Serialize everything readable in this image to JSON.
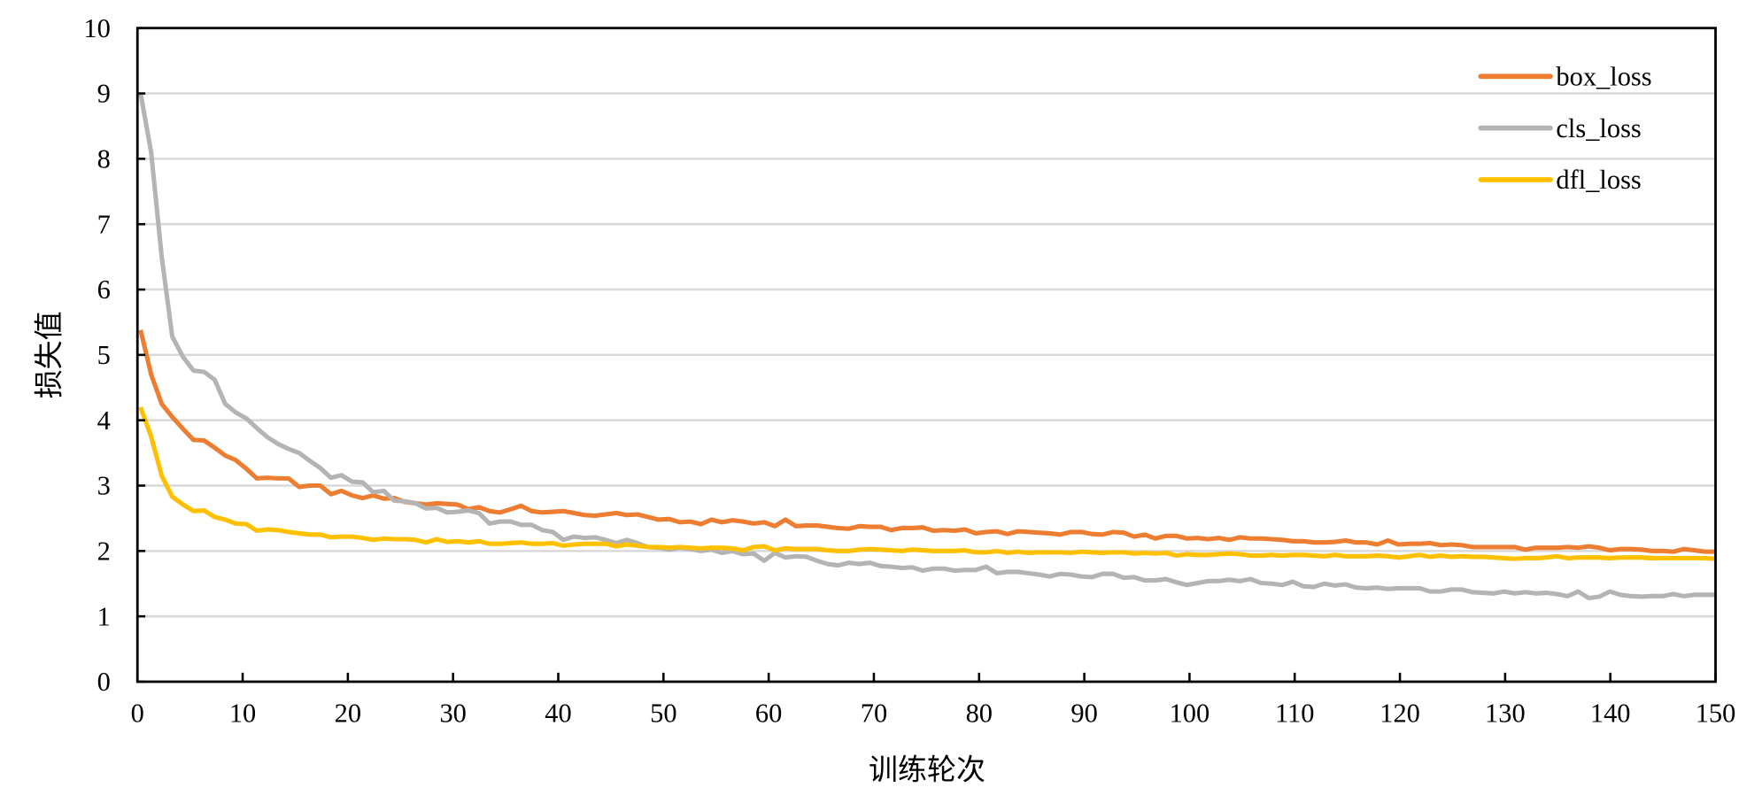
{
  "chart_data": {
    "type": "line",
    "title": "",
    "xlabel": "训练轮次",
    "ylabel": "损失值",
    "xlim": [
      0,
      150
    ],
    "ylim": [
      0,
      10
    ],
    "x_ticks": [
      "0",
      "10",
      "20",
      "30",
      "40",
      "50",
      "60",
      "70",
      "80",
      "90",
      "100",
      "110",
      "120",
      "130",
      "140",
      "150"
    ],
    "y_ticks": [
      "0",
      "1",
      "2",
      "3",
      "4",
      "5",
      "6",
      "7",
      "8",
      "9",
      "10"
    ],
    "grid": "horizontal",
    "legend_position": "top-right",
    "x_note": "epochs 1..150",
    "series": [
      {
        "name": "box_loss",
        "color": "#ED7D31",
        "values": [
          5.38,
          4.7,
          4.25,
          4.05,
          3.87,
          3.7,
          3.69,
          3.58,
          3.46,
          3.39,
          3.26,
          3.11,
          3.12,
          3.11,
          3.11,
          2.98,
          3.0,
          3.0,
          2.87,
          2.92,
          2.85,
          2.81,
          2.85,
          2.8,
          2.81,
          2.75,
          2.73,
          2.71,
          2.73,
          2.72,
          2.71,
          2.64,
          2.67,
          2.61,
          2.59,
          2.64,
          2.69,
          2.61,
          2.59,
          2.6,
          2.61,
          2.58,
          2.55,
          2.54,
          2.56,
          2.58,
          2.55,
          2.56,
          2.52,
          2.48,
          2.49,
          2.44,
          2.45,
          2.41,
          2.48,
          2.44,
          2.47,
          2.45,
          2.42,
          2.44,
          2.38,
          2.48,
          2.38,
          2.39,
          2.39,
          2.37,
          2.35,
          2.34,
          2.38,
          2.37,
          2.37,
          2.32,
          2.35,
          2.35,
          2.36,
          2.31,
          2.32,
          2.31,
          2.33,
          2.27,
          2.29,
          2.3,
          2.26,
          2.3,
          2.29,
          2.28,
          2.27,
          2.25,
          2.29,
          2.29,
          2.26,
          2.25,
          2.29,
          2.28,
          2.22,
          2.25,
          2.19,
          2.23,
          2.23,
          2.19,
          2.2,
          2.18,
          2.2,
          2.17,
          2.21,
          2.19,
          2.19,
          2.18,
          2.17,
          2.15,
          2.15,
          2.13,
          2.13,
          2.14,
          2.16,
          2.13,
          2.13,
          2.1,
          2.16,
          2.1,
          2.11,
          2.11,
          2.12,
          2.09,
          2.1,
          2.09,
          2.06,
          2.06,
          2.06,
          2.06,
          2.06,
          2.02,
          2.05,
          2.05,
          2.05,
          2.06,
          2.05,
          2.07,
          2.05,
          2.01,
          2.03,
          2.03,
          2.02,
          2.0,
          2.0,
          1.99,
          2.03,
          2.01,
          1.99,
          1.99
        ]
      },
      {
        "name": "cls_loss",
        "color": "#B4B4B4",
        "values": [
          9.0,
          8.1,
          6.5,
          5.28,
          4.97,
          4.76,
          4.74,
          4.62,
          4.25,
          4.12,
          4.03,
          3.88,
          3.74,
          3.64,
          3.56,
          3.5,
          3.38,
          3.27,
          3.12,
          3.16,
          3.06,
          3.05,
          2.9,
          2.92,
          2.77,
          2.76,
          2.73,
          2.65,
          2.66,
          2.59,
          2.6,
          2.62,
          2.58,
          2.42,
          2.45,
          2.45,
          2.4,
          2.4,
          2.32,
          2.29,
          2.17,
          2.22,
          2.2,
          2.21,
          2.17,
          2.12,
          2.17,
          2.12,
          2.06,
          2.05,
          2.02,
          2.05,
          2.03,
          2.0,
          2.02,
          1.97,
          2.0,
          1.95,
          1.96,
          1.85,
          1.97,
          1.9,
          1.92,
          1.91,
          1.85,
          1.8,
          1.78,
          1.82,
          1.8,
          1.82,
          1.77,
          1.76,
          1.74,
          1.75,
          1.7,
          1.73,
          1.73,
          1.7,
          1.71,
          1.71,
          1.76,
          1.66,
          1.68,
          1.68,
          1.66,
          1.64,
          1.61,
          1.65,
          1.64,
          1.61,
          1.6,
          1.65,
          1.65,
          1.59,
          1.6,
          1.55,
          1.55,
          1.57,
          1.52,
          1.48,
          1.51,
          1.54,
          1.54,
          1.56,
          1.54,
          1.57,
          1.51,
          1.5,
          1.48,
          1.53,
          1.46,
          1.45,
          1.5,
          1.47,
          1.49,
          1.44,
          1.43,
          1.44,
          1.42,
          1.43,
          1.43,
          1.43,
          1.38,
          1.38,
          1.41,
          1.41,
          1.37,
          1.36,
          1.35,
          1.38,
          1.35,
          1.37,
          1.35,
          1.36,
          1.34,
          1.31,
          1.38,
          1.28,
          1.3,
          1.38,
          1.33,
          1.31,
          1.3,
          1.31,
          1.31,
          1.34,
          1.31,
          1.33,
          1.33,
          1.33
        ]
      },
      {
        "name": "dfl_loss",
        "color": "#FFC000",
        "values": [
          4.2,
          3.75,
          3.15,
          2.83,
          2.71,
          2.61,
          2.62,
          2.52,
          2.48,
          2.42,
          2.41,
          2.31,
          2.33,
          2.32,
          2.29,
          2.27,
          2.25,
          2.25,
          2.21,
          2.22,
          2.22,
          2.2,
          2.17,
          2.19,
          2.18,
          2.18,
          2.17,
          2.13,
          2.18,
          2.14,
          2.15,
          2.13,
          2.15,
          2.11,
          2.11,
          2.12,
          2.13,
          2.11,
          2.11,
          2.12,
          2.08,
          2.1,
          2.11,
          2.11,
          2.11,
          2.07,
          2.1,
          2.08,
          2.06,
          2.06,
          2.05,
          2.06,
          2.05,
          2.04,
          2.05,
          2.05,
          2.04,
          2.01,
          2.06,
          2.07,
          2.01,
          2.04,
          2.03,
          2.03,
          2.03,
          2.01,
          2.0,
          2.0,
          2.02,
          2.03,
          2.02,
          2.01,
          2.0,
          2.02,
          2.01,
          2.0,
          2.0,
          2.0,
          2.01,
          1.98,
          1.98,
          2.0,
          1.97,
          1.99,
          1.97,
          1.98,
          1.98,
          1.98,
          1.97,
          1.99,
          1.98,
          1.97,
          1.98,
          1.98,
          1.96,
          1.97,
          1.96,
          1.97,
          1.93,
          1.95,
          1.94,
          1.94,
          1.95,
          1.96,
          1.95,
          1.93,
          1.93,
          1.94,
          1.93,
          1.94,
          1.94,
          1.93,
          1.92,
          1.94,
          1.92,
          1.92,
          1.92,
          1.93,
          1.92,
          1.9,
          1.92,
          1.94,
          1.91,
          1.93,
          1.91,
          1.92,
          1.91,
          1.91,
          1.9,
          1.89,
          1.88,
          1.89,
          1.89,
          1.9,
          1.92,
          1.89,
          1.9,
          1.9,
          1.9,
          1.89,
          1.9,
          1.9,
          1.9,
          1.89,
          1.89,
          1.89,
          1.89,
          1.89,
          1.89,
          1.88
        ]
      }
    ]
  }
}
